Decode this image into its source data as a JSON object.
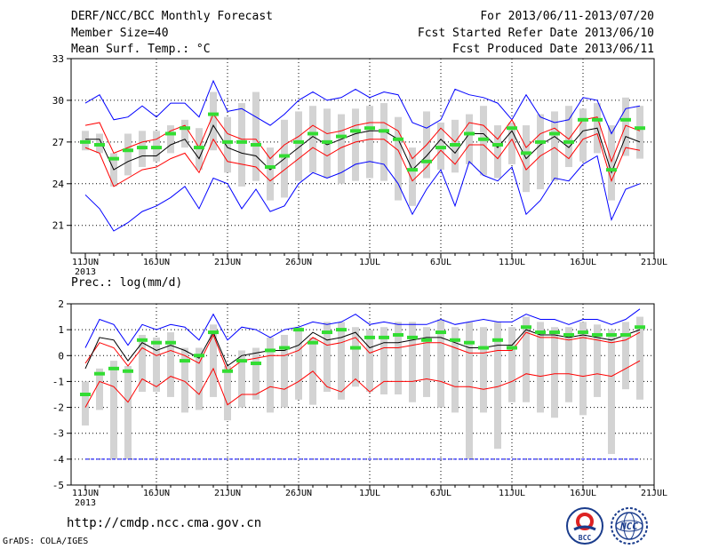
{
  "header": {
    "title": "DERF/NCC/BCC Monthly Forecast",
    "member_size": "Member Size=40",
    "variable": "Mean Surf. Temp.: °C",
    "period": "For 2013/06/11-2013/07/20",
    "fcst_started": "Fcst Started Refer Date 2013/06/10",
    "fcst_produced": "Fcst Produced Date 2013/06/11"
  },
  "footer": {
    "url": "http://cmdp.ncc.cma.gov.cn",
    "grads": "GrADS: COLA/IGES",
    "logo_bcc_text": "BCC",
    "logo_ncc_text": "NCC"
  },
  "colors": {
    "ensemble_mean": "#000000",
    "spread": "#ff0000",
    "extreme": "#0000ff",
    "climatology": "#33dd33",
    "members_box": "#d3d3d3",
    "grid": "#000000"
  },
  "chart_data": [
    {
      "type": "line",
      "title": "Mean Surf. Temp.: °C",
      "xlabel": "",
      "ylabel": "°C",
      "ylim": [
        19,
        33
      ],
      "yticks": [
        21,
        24,
        27,
        30,
        33
      ],
      "grid": "dotted",
      "x_tick_labels": [
        "11JUN",
        "16JUN",
        "21JUN",
        "26JUN",
        "1JUL",
        "6JUL",
        "11JUL",
        "16JUL",
        "21JUL"
      ],
      "x_tick_sublabel": "2013",
      "x": [
        11,
        12,
        13,
        14,
        15,
        16,
        17,
        18,
        19,
        20,
        21,
        22,
        23,
        24,
        25,
        26,
        27,
        28,
        29,
        30,
        31,
        32,
        33,
        34,
        35,
        36,
        37,
        38,
        39,
        40,
        41,
        42,
        43,
        44,
        45,
        46,
        47,
        48,
        49,
        50
      ],
      "series": [
        {
          "name": "max",
          "color": "#0000ff",
          "values": [
            29.8,
            30.4,
            28.6,
            28.8,
            29.6,
            28.8,
            29.8,
            29.8,
            28.8,
            31.4,
            29.2,
            29.4,
            28.8,
            28.2,
            29.0,
            30.0,
            30.6,
            30.0,
            30.2,
            30.8,
            30.2,
            30.6,
            30.4,
            28.4,
            28.0,
            28.6,
            30.8,
            30.4,
            30.2,
            29.8,
            28.6,
            30.4,
            28.8,
            28.4,
            28.6,
            30.2,
            30.0,
            27.6,
            29.4,
            29.6
          ]
        },
        {
          "name": "upper",
          "color": "#ff0000",
          "values": [
            28.2,
            28.4,
            26.2,
            26.6,
            27.0,
            27.2,
            27.8,
            28.2,
            26.6,
            29.0,
            27.6,
            27.2,
            27.2,
            25.8,
            26.8,
            27.4,
            28.2,
            27.6,
            27.8,
            28.2,
            28.4,
            28.4,
            27.8,
            25.8,
            26.8,
            28.0,
            27.0,
            28.4,
            28.2,
            27.2,
            28.6,
            26.6,
            27.6,
            28.0,
            27.2,
            28.6,
            28.8,
            25.6,
            28.2,
            27.8
          ]
        },
        {
          "name": "mean",
          "color": "#000000",
          "values": [
            27.2,
            27.2,
            25.0,
            25.6,
            26.0,
            26.0,
            26.8,
            27.2,
            25.8,
            28.2,
            26.6,
            26.2,
            26.0,
            25.0,
            25.8,
            26.6,
            27.4,
            26.8,
            27.2,
            27.6,
            27.8,
            27.8,
            27.2,
            25.0,
            26.0,
            27.2,
            26.2,
            27.6,
            27.6,
            26.6,
            27.8,
            25.8,
            26.8,
            27.4,
            26.6,
            27.8,
            28.0,
            24.8,
            27.4,
            27.0
          ]
        },
        {
          "name": "lower",
          "color": "#ff0000",
          "values": [
            26.6,
            26.2,
            23.8,
            24.4,
            25.0,
            25.2,
            25.8,
            26.2,
            24.8,
            27.2,
            25.6,
            25.4,
            25.2,
            24.2,
            25.0,
            25.8,
            26.6,
            26.0,
            26.6,
            27.0,
            27.2,
            27.2,
            26.4,
            24.2,
            25.2,
            26.4,
            25.4,
            26.8,
            26.8,
            25.8,
            27.2,
            25.0,
            26.0,
            26.6,
            25.8,
            27.2,
            27.6,
            24.2,
            26.6,
            26.4
          ]
        },
        {
          "name": "min",
          "color": "#0000ff",
          "values": [
            23.2,
            22.2,
            20.6,
            21.2,
            22.0,
            22.4,
            23.0,
            23.8,
            22.2,
            24.4,
            24.0,
            22.2,
            23.6,
            22.0,
            22.4,
            24.0,
            24.8,
            24.4,
            24.8,
            25.4,
            25.6,
            25.4,
            24.0,
            21.8,
            23.6,
            25.0,
            22.4,
            25.6,
            24.6,
            24.2,
            25.2,
            21.8,
            22.8,
            24.4,
            24.2,
            25.4,
            26.0,
            21.4,
            23.6,
            24.0
          ]
        },
        {
          "name": "climatology",
          "color": "#33dd33",
          "values": [
            27.0,
            26.8,
            25.8,
            26.4,
            26.6,
            26.6,
            27.6,
            28.0,
            26.6,
            29.0,
            27.0,
            27.0,
            26.8,
            25.2,
            26.0,
            27.0,
            27.6,
            27.0,
            27.4,
            27.8,
            28.0,
            27.8,
            27.2,
            25.0,
            25.6,
            26.6,
            26.8,
            27.6,
            27.2,
            26.8,
            28.0,
            26.2,
            27.0,
            27.6,
            27.0,
            28.6,
            28.6,
            25.0,
            28.6,
            28.0
          ]
        }
      ],
      "members_range": [
        [
          26.4,
          27.8
        ],
        [
          26.2,
          27.6
        ],
        [
          23.8,
          26.2
        ],
        [
          24.6,
          27.6
        ],
        [
          25.2,
          27.8
        ],
        [
          25.6,
          27.8
        ],
        [
          26.2,
          28.2
        ],
        [
          26.6,
          28.6
        ],
        [
          25.0,
          28.0
        ],
        [
          26.4,
          30.6
        ],
        [
          24.8,
          28.8
        ],
        [
          23.8,
          29.8
        ],
        [
          24.2,
          30.6
        ],
        [
          22.8,
          26.6
        ],
        [
          23.0,
          28.6
        ],
        [
          24.2,
          29.2
        ],
        [
          24.8,
          29.6
        ],
        [
          24.4,
          29.4
        ],
        [
          24.0,
          29.0
        ],
        [
          24.2,
          29.4
        ],
        [
          24.4,
          29.6
        ],
        [
          24.2,
          29.8
        ],
        [
          22.8,
          28.8
        ],
        [
          22.4,
          26.6
        ],
        [
          24.4,
          29.2
        ],
        [
          25.0,
          28.4
        ],
        [
          24.8,
          28.6
        ],
        [
          25.4,
          29.0
        ],
        [
          24.6,
          29.6
        ],
        [
          24.4,
          28.2
        ],
        [
          25.4,
          28.4
        ],
        [
          23.4,
          28.2
        ],
        [
          23.6,
          29.0
        ],
        [
          24.2,
          29.2
        ],
        [
          25.2,
          29.6
        ],
        [
          25.6,
          29.4
        ],
        [
          26.2,
          29.8
        ],
        [
          22.8,
          28.2
        ],
        [
          26.0,
          30.2
        ],
        [
          25.8,
          29.6
        ]
      ]
    },
    {
      "type": "line",
      "title": "Prec.: log(mm/d)",
      "xlabel": "",
      "ylabel": "log(mm/d)",
      "ylim": [
        -5,
        2
      ],
      "yticks": [
        -5,
        -4,
        -3,
        -2,
        -1,
        0,
        1,
        2
      ],
      "grid": "dotted",
      "x_tick_labels": [
        "11JUN",
        "16JUN",
        "21JUN",
        "26JUN",
        "1JUL",
        "6JUL",
        "11JUL",
        "16JUL",
        "21JUL"
      ],
      "x_tick_sublabel": "2013",
      "x": [
        11,
        12,
        13,
        14,
        15,
        16,
        17,
        18,
        19,
        20,
        21,
        22,
        23,
        24,
        25,
        26,
        27,
        28,
        29,
        30,
        31,
        32,
        33,
        34,
        35,
        36,
        37,
        38,
        39,
        40,
        41,
        42,
        43,
        44,
        45,
        46,
        47,
        48,
        49,
        50
      ],
      "lower_bound_line": -4,
      "series": [
        {
          "name": "max",
          "color": "#0000ff",
          "values": [
            0.3,
            1.4,
            1.2,
            0.4,
            1.2,
            1.0,
            1.2,
            1.1,
            0.6,
            1.6,
            0.6,
            1.1,
            1.0,
            0.7,
            1.0,
            1.1,
            1.3,
            1.2,
            1.3,
            1.6,
            1.2,
            1.3,
            1.2,
            1.2,
            1.2,
            1.4,
            1.2,
            1.3,
            1.4,
            1.3,
            1.3,
            1.6,
            1.4,
            1.4,
            1.2,
            1.4,
            1.4,
            1.2,
            1.4,
            1.8
          ]
        },
        {
          "name": "upper",
          "color": "#ff0000",
          "values": [
            -0.3,
            0.5,
            0.3,
            -0.4,
            0.3,
            0.0,
            0.2,
            0.0,
            -0.3,
            0.8,
            -0.6,
            -0.2,
            -0.1,
            0.0,
            0.0,
            0.2,
            0.7,
            0.4,
            0.5,
            0.7,
            0.1,
            0.3,
            0.3,
            0.4,
            0.5,
            0.5,
            0.3,
            0.1,
            0.1,
            0.2,
            0.2,
            0.9,
            0.7,
            0.7,
            0.6,
            0.7,
            0.6,
            0.5,
            0.6,
            0.9
          ]
        },
        {
          "name": "mean",
          "color": "#000000",
          "values": [
            -0.5,
            0.7,
            0.6,
            -0.2,
            0.5,
            0.2,
            0.4,
            0.2,
            -0.1,
            0.9,
            -0.4,
            0.0,
            0.1,
            0.2,
            0.2,
            0.4,
            0.9,
            0.6,
            0.7,
            0.9,
            0.3,
            0.5,
            0.5,
            0.6,
            0.7,
            0.7,
            0.5,
            0.3,
            0.3,
            0.4,
            0.4,
            1.0,
            0.8,
            0.8,
            0.7,
            0.8,
            0.7,
            0.6,
            0.8,
            1.0
          ]
        },
        {
          "name": "lower",
          "color": "#ff0000",
          "values": [
            -2.0,
            -1.0,
            -1.2,
            -1.8,
            -0.9,
            -1.2,
            -0.8,
            -1.0,
            -1.5,
            -0.5,
            -1.9,
            -1.5,
            -1.5,
            -1.2,
            -1.3,
            -1.0,
            -0.6,
            -1.2,
            -1.4,
            -0.9,
            -1.4,
            -1.0,
            -1.0,
            -1.0,
            -0.9,
            -1.0,
            -1.2,
            -1.2,
            -1.3,
            -1.2,
            -1.0,
            -0.7,
            -0.8,
            -0.7,
            -0.7,
            -0.8,
            -0.7,
            -0.8,
            -0.5,
            -0.2
          ]
        },
        {
          "name": "climatology",
          "color": "#33dd33",
          "values": [
            -1.5,
            -0.7,
            -0.5,
            -0.6,
            0.6,
            0.5,
            0.5,
            -0.2,
            0.0,
            0.9,
            -0.6,
            -0.2,
            -0.3,
            0.2,
            0.3,
            1.0,
            0.5,
            0.9,
            1.0,
            0.3,
            0.7,
            0.7,
            0.8,
            0.7,
            0.6,
            0.9,
            0.6,
            0.5,
            0.3,
            0.6,
            0.3,
            1.1,
            0.9,
            0.9,
            0.8,
            0.9,
            0.8,
            0.8,
            0.8,
            1.1
          ]
        }
      ],
      "members_range": [
        [
          -2.7,
          -1.0
        ],
        [
          -2.1,
          -0.5
        ],
        [
          -4.0,
          -0.2
        ],
        [
          -4.0,
          -0.4
        ],
        [
          -1.4,
          0.8
        ],
        [
          -1.4,
          0.7
        ],
        [
          -1.6,
          0.9
        ],
        [
          -2.2,
          0.3
        ],
        [
          -2.1,
          0.3
        ],
        [
          -1.6,
          1.2
        ],
        [
          -2.5,
          -0.4
        ],
        [
          -2.0,
          0.2
        ],
        [
          -1.7,
          0.3
        ],
        [
          -2.2,
          0.7
        ],
        [
          -2.0,
          0.8
        ],
        [
          -1.7,
          1.1
        ],
        [
          -1.9,
          0.7
        ],
        [
          -1.4,
          1.3
        ],
        [
          -1.7,
          1.3
        ],
        [
          -1.2,
          1.1
        ],
        [
          -1.4,
          1.0
        ],
        [
          -1.5,
          1.1
        ],
        [
          -1.5,
          1.3
        ],
        [
          -1.8,
          1.3
        ],
        [
          -1.6,
          1.1
        ],
        [
          -2.0,
          1.4
        ],
        [
          -2.2,
          1.1
        ],
        [
          -4.0,
          1.3
        ],
        [
          -2.2,
          1.1
        ],
        [
          -3.6,
          1.3
        ],
        [
          -1.8,
          1.1
        ],
        [
          -1.8,
          1.5
        ],
        [
          -2.2,
          1.3
        ],
        [
          -2.4,
          1.1
        ],
        [
          -1.8,
          1.1
        ],
        [
          -2.3,
          1.3
        ],
        [
          -1.6,
          1.2
        ],
        [
          -3.8,
          1.0
        ],
        [
          -1.3,
          1.3
        ],
        [
          -1.7,
          1.5
        ]
      ]
    }
  ]
}
